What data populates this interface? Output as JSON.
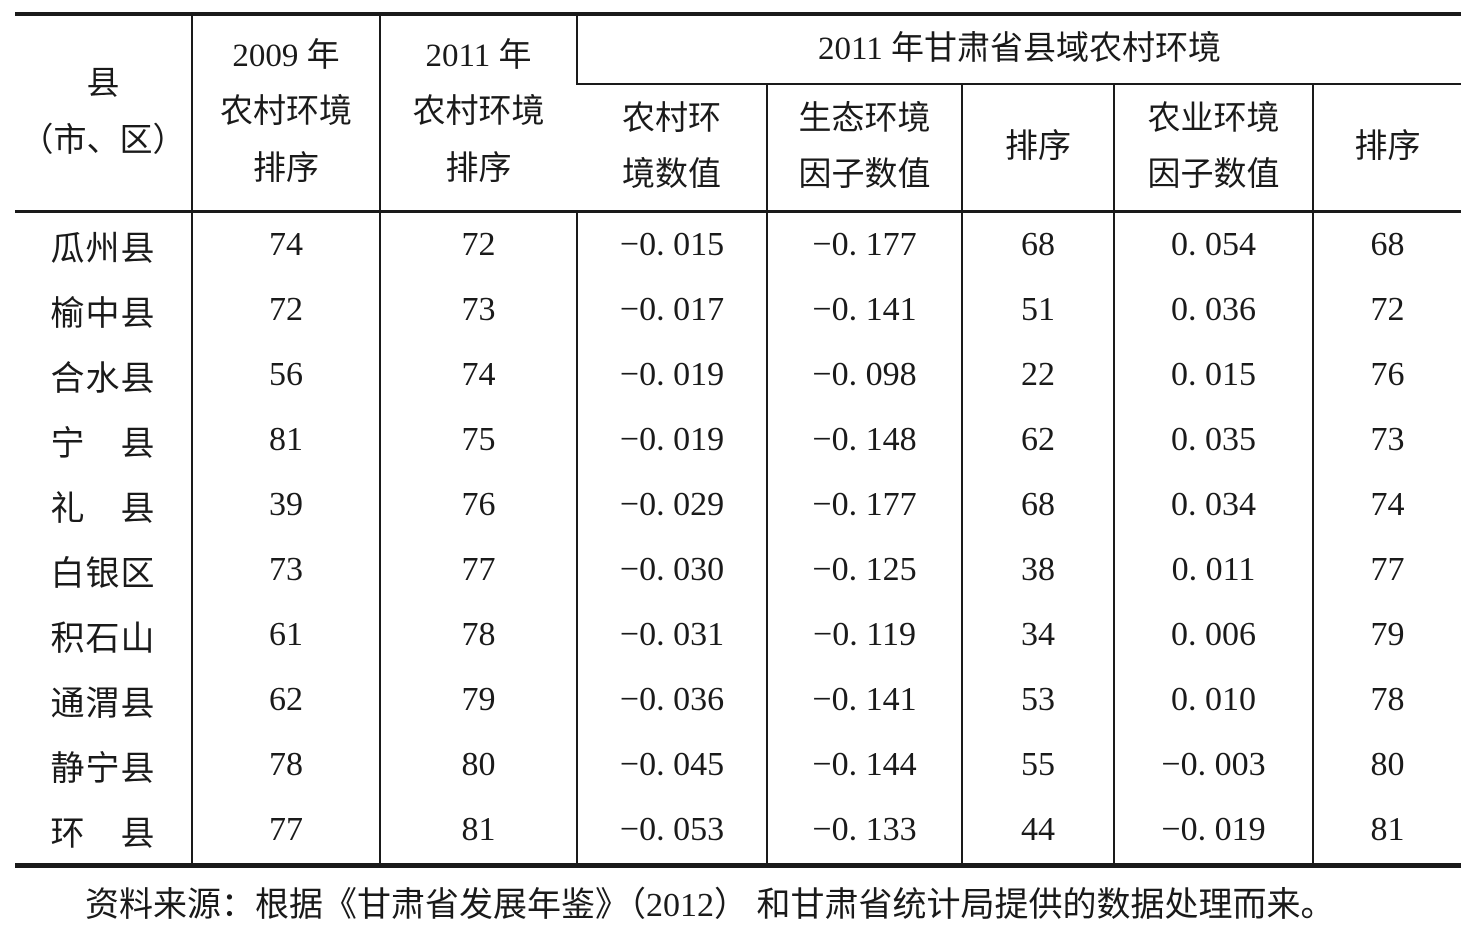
{
  "page": {
    "background_color": "#ffffff",
    "text_color": "#1a1a1a"
  },
  "table": {
    "header": {
      "county": "县\n（市、区）",
      "rank_2009": "2009 年\n农村环境\n排序",
      "rank_2011": "2011 年\n农村环境\n排序",
      "group_2011": "2011 年甘肃省县域农村环境",
      "env_value": "农村环\n境数值",
      "eco_value": "生态环境\n因子数值",
      "eco_rank": "排序",
      "agri_value": "农业环境\n因子数值",
      "agri_rank": "排序"
    },
    "row_keys": [
      "county",
      "r2009",
      "r2011",
      "env_value",
      "eco_value",
      "eco_rank",
      "agri_value",
      "agri_rank"
    ],
    "rows": [
      {
        "county": "瓜州县",
        "r2009": "74",
        "r2011": "72",
        "env_value": "−0. 015",
        "eco_value": "−0. 177",
        "eco_rank": "68",
        "agri_value": "0. 054",
        "agri_rank": "68"
      },
      {
        "county": "榆中县",
        "r2009": "72",
        "r2011": "73",
        "env_value": "−0. 017",
        "eco_value": "−0. 141",
        "eco_rank": "51",
        "agri_value": "0. 036",
        "agri_rank": "72"
      },
      {
        "county": "合水县",
        "r2009": "56",
        "r2011": "74",
        "env_value": "−0. 019",
        "eco_value": "−0. 098",
        "eco_rank": "22",
        "agri_value": "0. 015",
        "agri_rank": "76"
      },
      {
        "county": "宁　县",
        "r2009": "81",
        "r2011": "75",
        "env_value": "−0. 019",
        "eco_value": "−0. 148",
        "eco_rank": "62",
        "agri_value": "0. 035",
        "agri_rank": "73"
      },
      {
        "county": "礼　县",
        "r2009": "39",
        "r2011": "76",
        "env_value": "−0. 029",
        "eco_value": "−0. 177",
        "eco_rank": "68",
        "agri_value": "0. 034",
        "agri_rank": "74"
      },
      {
        "county": "白银区",
        "r2009": "73",
        "r2011": "77",
        "env_value": "−0. 030",
        "eco_value": "−0. 125",
        "eco_rank": "38",
        "agri_value": "0. 011",
        "agri_rank": "77"
      },
      {
        "county": "积石山",
        "r2009": "61",
        "r2011": "78",
        "env_value": "−0. 031",
        "eco_value": "−0. 119",
        "eco_rank": "34",
        "agri_value": "0. 006",
        "agri_rank": "79"
      },
      {
        "county": "通渭县",
        "r2009": "62",
        "r2011": "79",
        "env_value": "−0. 036",
        "eco_value": "−0. 141",
        "eco_rank": "53",
        "agri_value": "0. 010",
        "agri_rank": "78"
      },
      {
        "county": "静宁县",
        "r2009": "78",
        "r2011": "80",
        "env_value": "−0. 045",
        "eco_value": "−0. 144",
        "eco_rank": "55",
        "agri_value": "−0. 003",
        "agri_rank": "80"
      },
      {
        "county": "环　县",
        "r2009": "77",
        "r2011": "81",
        "env_value": "−0. 053",
        "eco_value": "−0. 133",
        "eco_rank": "44",
        "agri_value": "−0. 019",
        "agri_rank": "81"
      }
    ]
  },
  "footer": {
    "source": "资料来源：根据《甘肃省发展年鉴》（2012） 和甘肃省统计局提供的数据处理而来。"
  }
}
